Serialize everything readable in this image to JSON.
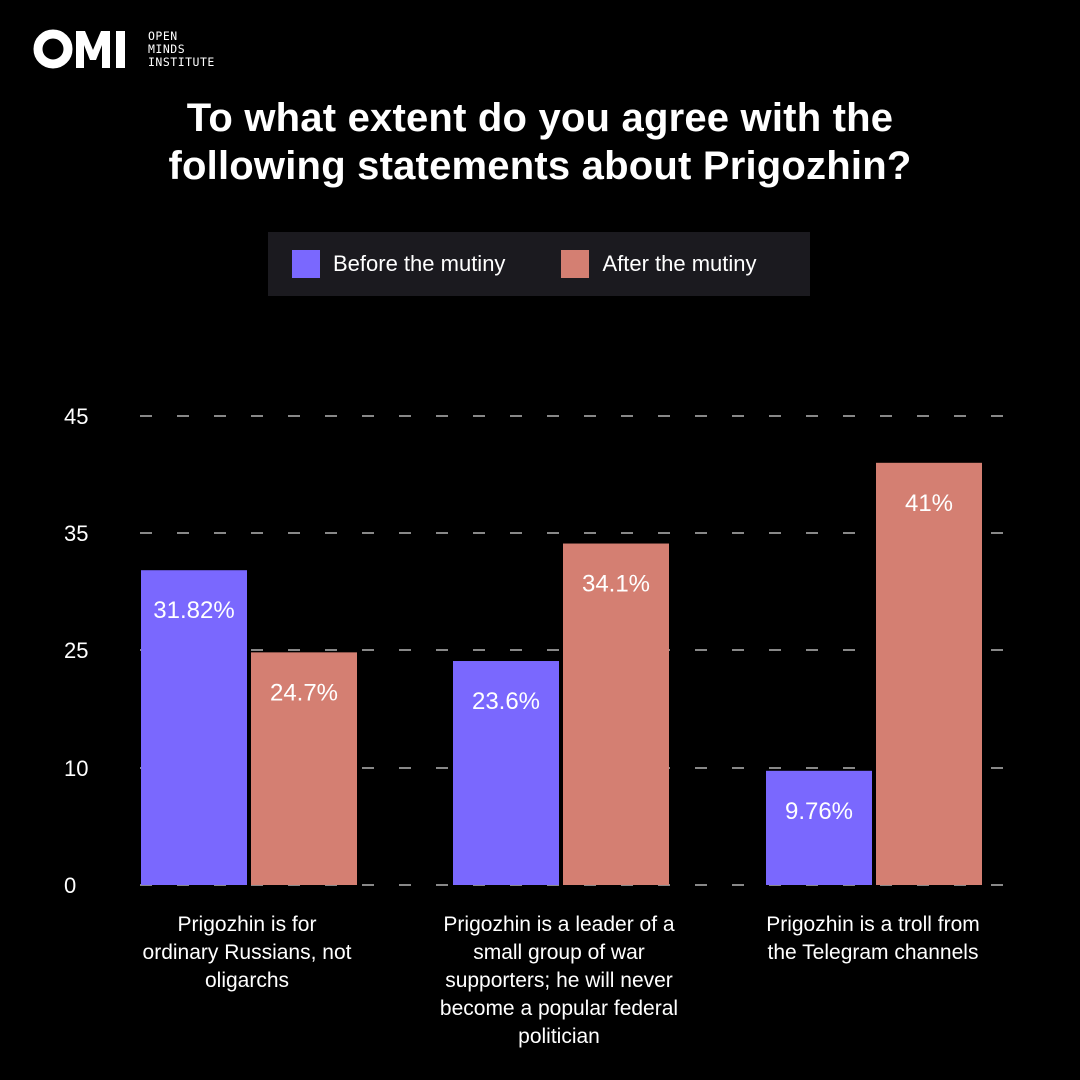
{
  "brand": {
    "logo_text": "OMI",
    "name_lines": [
      "OPEN",
      "MINDS",
      "INSTITUTE"
    ]
  },
  "colors": {
    "background": "#000000",
    "before": "#7a68fe",
    "after": "#d47f72",
    "grid": "#ffffff",
    "legend_bg": "#1b1a1f"
  },
  "chart_data": {
    "type": "bar",
    "title": "To what extent do you agree with the following statements about Prigozhin?",
    "title_lines": [
      "To what extent do you agree with the",
      "following statements about Prigozhin?"
    ],
    "categories": [
      [
        "Prigozhin is for",
        "ordinary Russians, not",
        "oligarchs"
      ],
      [
        "Prigozhin is a leader of a",
        "small group of war",
        "supporters; he will never",
        "become a popular federal",
        "politician"
      ],
      [
        "Prigozhin is a troll from",
        "the Telegram channels"
      ]
    ],
    "series": [
      {
        "name": "Before the mutiny",
        "values": [
          31.82,
          23.6,
          9.76
        ],
        "labels": [
          "31.82%",
          "23.6%",
          "9.76%"
        ]
      },
      {
        "name": "After the mutiny",
        "values": [
          24.7,
          34.1,
          41
        ],
        "labels": [
          "24.7%",
          "34.1%",
          "41%"
        ]
      }
    ],
    "y_ticks": [
      0,
      10,
      25,
      35,
      45
    ],
    "y_tick_labels": [
      "0",
      "10",
      "25",
      "35",
      "45"
    ],
    "grid": true,
    "grid_style": "dashed",
    "legend_position": "top-center"
  }
}
